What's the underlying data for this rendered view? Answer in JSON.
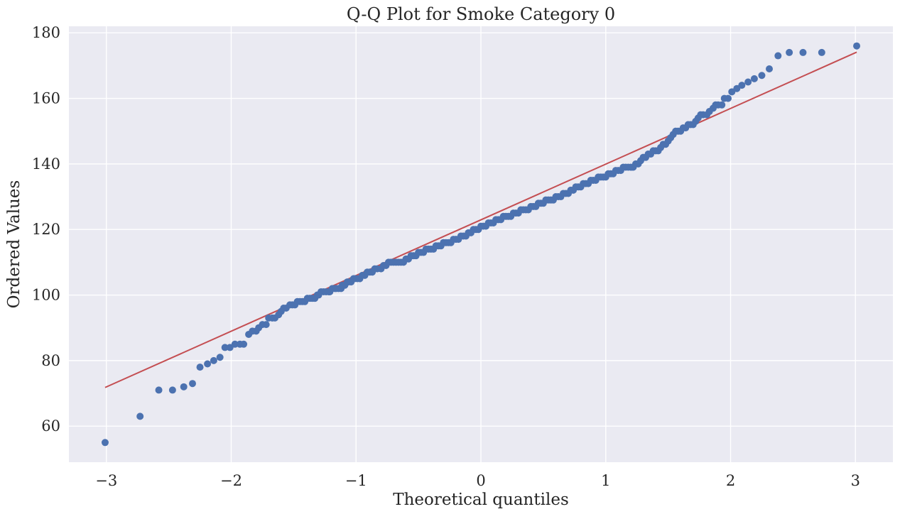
{
  "chart_data": {
    "type": "scatter",
    "title": "Q-Q Plot for Smoke Category 0",
    "xlabel": "Theoretical quantiles",
    "ylabel": "Ordered Values",
    "xlim": [
      -3.3,
      3.3
    ],
    "ylim": [
      49,
      182
    ],
    "xticks": [
      -3,
      -2,
      -1,
      0,
      1,
      2,
      3
    ],
    "xtick_labels": [
      "−3",
      "−2",
      "−1",
      "0",
      "1",
      "2",
      "3"
    ],
    "yticks": [
      60,
      80,
      100,
      120,
      140,
      160,
      180
    ],
    "ytick_labels": [
      "60",
      "80",
      "100",
      "120",
      "140",
      "160",
      "180"
    ],
    "grid": true,
    "background_color": "#eaeaf2",
    "grid_color": "#ffffff",
    "series": [
      {
        "marker_color": "#4c72b0",
        "points": [
          [
            -3.01,
            55
          ],
          [
            -2.73,
            63
          ],
          [
            -2.58,
            71
          ],
          [
            -2.47,
            71
          ],
          [
            -2.38,
            72
          ],
          [
            -2.31,
            73
          ],
          [
            -2.25,
            78
          ],
          [
            -2.19,
            79
          ],
          [
            -2.14,
            80
          ],
          [
            -2.09,
            81
          ],
          [
            -2.05,
            84
          ],
          [
            -2.01,
            84
          ],
          [
            -1.97,
            85
          ],
          [
            -1.93,
            85
          ],
          [
            -1.9,
            85
          ],
          [
            -1.86,
            88
          ],
          [
            -1.83,
            89
          ],
          [
            -1.8,
            89
          ],
          [
            -1.78,
            90
          ],
          [
            -1.75,
            91
          ],
          [
            -1.72,
            91
          ],
          [
            -1.7,
            93
          ],
          [
            -1.67,
            93
          ],
          [
            -1.65,
            93
          ],
          [
            -1.62,
            94
          ],
          [
            -1.6,
            95
          ],
          [
            -1.58,
            96
          ],
          [
            -1.56,
            96
          ],
          [
            -1.53,
            97
          ],
          [
            -1.51,
            97
          ],
          [
            -1.49,
            97
          ],
          [
            -1.47,
            98
          ],
          [
            -1.45,
            98
          ],
          [
            -1.43,
            98
          ],
          [
            -1.41,
            98
          ],
          [
            -1.39,
            99
          ],
          [
            -1.37,
            99
          ],
          [
            -1.35,
            99
          ],
          [
            -1.33,
            99
          ],
          [
            -1.31,
            100
          ],
          [
            -1.3,
            100
          ],
          [
            -1.28,
            101
          ],
          [
            -1.26,
            101
          ],
          [
            -1.24,
            101
          ],
          [
            -1.22,
            101
          ],
          [
            -1.21,
            101
          ],
          [
            -1.19,
            102
          ],
          [
            -1.17,
            102
          ],
          [
            -1.16,
            102
          ],
          [
            -1.14,
            102
          ],
          [
            -1.12,
            102
          ],
          [
            -1.11,
            103
          ],
          [
            -1.09,
            103
          ],
          [
            -1.07,
            104
          ],
          [
            -1.06,
            104
          ],
          [
            -1.04,
            104
          ],
          [
            -1.02,
            105
          ],
          [
            -1.01,
            105
          ],
          [
            -0.99,
            105
          ],
          [
            -0.97,
            105
          ],
          [
            -0.95,
            106
          ],
          [
            -0.93,
            106
          ],
          [
            -0.91,
            107
          ],
          [
            -0.89,
            107
          ],
          [
            -0.87,
            107
          ],
          [
            -0.85,
            108
          ],
          [
            -0.83,
            108
          ],
          [
            -0.8,
            108
          ],
          [
            -0.78,
            109
          ],
          [
            -0.76,
            109
          ],
          [
            -0.74,
            110
          ],
          [
            -0.72,
            110
          ],
          [
            -0.7,
            110
          ],
          [
            -0.68,
            110
          ],
          [
            -0.66,
            110
          ],
          [
            -0.64,
            110
          ],
          [
            -0.62,
            110
          ],
          [
            -0.6,
            111
          ],
          [
            -0.58,
            111
          ],
          [
            -0.56,
            112
          ],
          [
            -0.54,
            112
          ],
          [
            -0.52,
            112
          ],
          [
            -0.5,
            113
          ],
          [
            -0.48,
            113
          ],
          [
            -0.46,
            113
          ],
          [
            -0.44,
            114
          ],
          [
            -0.42,
            114
          ],
          [
            -0.4,
            114
          ],
          [
            -0.38,
            114
          ],
          [
            -0.36,
            115
          ],
          [
            -0.34,
            115
          ],
          [
            -0.32,
            115
          ],
          [
            -0.3,
            116
          ],
          [
            -0.28,
            116
          ],
          [
            -0.26,
            116
          ],
          [
            -0.24,
            116
          ],
          [
            -0.22,
            117
          ],
          [
            -0.2,
            117
          ],
          [
            -0.18,
            117
          ],
          [
            -0.16,
            118
          ],
          [
            -0.14,
            118
          ],
          [
            -0.12,
            118
          ],
          [
            -0.1,
            119
          ],
          [
            -0.08,
            119
          ],
          [
            -0.06,
            120
          ],
          [
            -0.04,
            120
          ],
          [
            -0.02,
            120
          ],
          [
            0.0,
            121
          ],
          [
            0.02,
            121
          ],
          [
            0.04,
            121
          ],
          [
            0.06,
            122
          ],
          [
            0.08,
            122
          ],
          [
            0.1,
            122
          ],
          [
            0.12,
            123
          ],
          [
            0.14,
            123
          ],
          [
            0.16,
            123
          ],
          [
            0.18,
            124
          ],
          [
            0.2,
            124
          ],
          [
            0.22,
            124
          ],
          [
            0.24,
            124
          ],
          [
            0.26,
            125
          ],
          [
            0.28,
            125
          ],
          [
            0.3,
            125
          ],
          [
            0.32,
            126
          ],
          [
            0.34,
            126
          ],
          [
            0.36,
            126
          ],
          [
            0.38,
            126
          ],
          [
            0.4,
            127
          ],
          [
            0.42,
            127
          ],
          [
            0.44,
            127
          ],
          [
            0.46,
            128
          ],
          [
            0.48,
            128
          ],
          [
            0.5,
            128
          ],
          [
            0.52,
            129
          ],
          [
            0.54,
            129
          ],
          [
            0.56,
            129
          ],
          [
            0.58,
            129
          ],
          [
            0.6,
            130
          ],
          [
            0.62,
            130
          ],
          [
            0.64,
            130
          ],
          [
            0.66,
            131
          ],
          [
            0.68,
            131
          ],
          [
            0.7,
            131
          ],
          [
            0.72,
            132
          ],
          [
            0.74,
            132
          ],
          [
            0.76,
            133
          ],
          [
            0.78,
            133
          ],
          [
            0.8,
            133
          ],
          [
            0.82,
            134
          ],
          [
            0.84,
            134
          ],
          [
            0.86,
            134
          ],
          [
            0.88,
            135
          ],
          [
            0.9,
            135
          ],
          [
            0.92,
            135
          ],
          [
            0.94,
            136
          ],
          [
            0.96,
            136
          ],
          [
            0.98,
            136
          ],
          [
            1.0,
            136
          ],
          [
            1.02,
            137
          ],
          [
            1.04,
            137
          ],
          [
            1.06,
            137
          ],
          [
            1.08,
            138
          ],
          [
            1.1,
            138
          ],
          [
            1.12,
            138
          ],
          [
            1.14,
            139
          ],
          [
            1.16,
            139
          ],
          [
            1.18,
            139
          ],
          [
            1.2,
            139
          ],
          [
            1.22,
            139
          ],
          [
            1.24,
            140
          ],
          [
            1.26,
            140
          ],
          [
            1.28,
            141
          ],
          [
            1.3,
            142
          ],
          [
            1.32,
            142
          ],
          [
            1.34,
            143
          ],
          [
            1.36,
            143
          ],
          [
            1.38,
            144
          ],
          [
            1.4,
            144
          ],
          [
            1.42,
            144
          ],
          [
            1.44,
            145
          ],
          [
            1.46,
            146
          ],
          [
            1.48,
            146
          ],
          [
            1.5,
            147
          ],
          [
            1.52,
            148
          ],
          [
            1.54,
            149
          ],
          [
            1.56,
            150
          ],
          [
            1.58,
            150
          ],
          [
            1.6,
            150
          ],
          [
            1.62,
            151
          ],
          [
            1.64,
            151
          ],
          [
            1.66,
            152
          ],
          [
            1.68,
            152
          ],
          [
            1.7,
            152
          ],
          [
            1.72,
            153
          ],
          [
            1.74,
            154
          ],
          [
            1.76,
            155
          ],
          [
            1.78,
            155
          ],
          [
            1.81,
            155
          ],
          [
            1.83,
            156
          ],
          [
            1.86,
            157
          ],
          [
            1.88,
            158
          ],
          [
            1.9,
            158
          ],
          [
            1.93,
            158
          ],
          [
            1.95,
            160
          ],
          [
            1.98,
            160
          ],
          [
            2.01,
            162
          ],
          [
            2.05,
            163
          ],
          [
            2.09,
            164
          ],
          [
            2.14,
            165
          ],
          [
            2.19,
            166
          ],
          [
            2.25,
            167
          ],
          [
            2.31,
            169
          ],
          [
            2.38,
            173
          ],
          [
            2.47,
            174
          ],
          [
            2.58,
            174
          ],
          [
            2.73,
            174
          ],
          [
            3.01,
            176
          ]
        ]
      }
    ],
    "fit_line": {
      "color": "#c44e52",
      "x": [
        -3.01,
        3.01
      ],
      "y": [
        71.8,
        174.1
      ]
    }
  }
}
